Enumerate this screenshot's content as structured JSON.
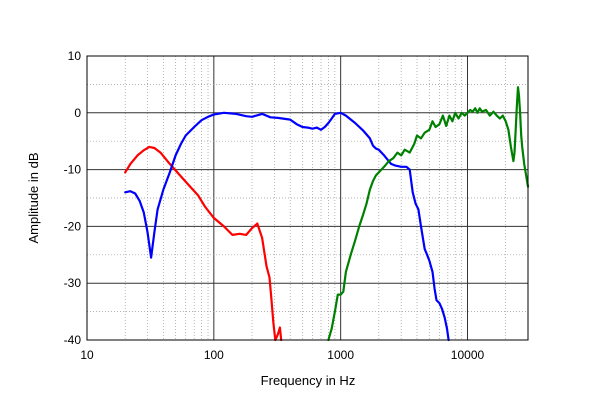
{
  "chart_data": {
    "type": "line",
    "title": "",
    "xlabel": "Frequency in Hz",
    "ylabel": "Amplitude in dB",
    "x_scale": "log",
    "xlim": [
      10,
      30000
    ],
    "ylim": [
      -40,
      10
    ],
    "grid": true,
    "x_ticks": [
      10,
      100,
      1000,
      10000
    ],
    "x_tick_labels": [
      "10",
      "100",
      "1000",
      "10000"
    ],
    "y_ticks": [
      10,
      0,
      -10,
      -20,
      -30,
      -40
    ],
    "y_tick_labels": [
      "10",
      "0",
      "-10",
      "-20",
      "-30",
      "-40"
    ],
    "series": [
      {
        "color": "#ff0000",
        "points": [
          [
            20,
            -10.5
          ],
          [
            22,
            -9
          ],
          [
            25,
            -7.5
          ],
          [
            28,
            -6.6
          ],
          [
            31,
            -6
          ],
          [
            34,
            -6.2
          ],
          [
            38,
            -7
          ],
          [
            45,
            -9
          ],
          [
            55,
            -11.2
          ],
          [
            65,
            -13
          ],
          [
            75,
            -14.5
          ],
          [
            85,
            -16.5
          ],
          [
            100,
            -18.5
          ],
          [
            120,
            -20
          ],
          [
            140,
            -21.5
          ],
          [
            160,
            -21.3
          ],
          [
            180,
            -21.5
          ],
          [
            200,
            -20.3
          ],
          [
            220,
            -19.5
          ],
          [
            240,
            -22
          ],
          [
            260,
            -27
          ],
          [
            275,
            -29
          ],
          [
            285,
            -33
          ],
          [
            295,
            -37
          ],
          [
            305,
            -40
          ],
          [
            320,
            -39
          ],
          [
            332,
            -37.8
          ],
          [
            340,
            -40
          ]
        ]
      },
      {
        "color": "#0000ff",
        "points": [
          [
            20,
            -14
          ],
          [
            22,
            -13.8
          ],
          [
            24,
            -14.2
          ],
          [
            26,
            -15.5
          ],
          [
            28,
            -17.5
          ],
          [
            30,
            -21
          ],
          [
            32,
            -25.5
          ],
          [
            34,
            -21
          ],
          [
            36,
            -17
          ],
          [
            40,
            -13.5
          ],
          [
            45,
            -10.5
          ],
          [
            50,
            -7.5
          ],
          [
            55,
            -5.5
          ],
          [
            60,
            -4
          ],
          [
            70,
            -2.5
          ],
          [
            80,
            -1.3
          ],
          [
            90,
            -0.7
          ],
          [
            100,
            -0.3
          ],
          [
            120,
            0
          ],
          [
            150,
            -0.2
          ],
          [
            180,
            -0.6
          ],
          [
            200,
            -0.7
          ],
          [
            240,
            -0.2
          ],
          [
            280,
            -0.8
          ],
          [
            320,
            -0.9
          ],
          [
            400,
            -1.2
          ],
          [
            450,
            -2
          ],
          [
            500,
            -2.5
          ],
          [
            550,
            -2.6
          ],
          [
            600,
            -2.8
          ],
          [
            650,
            -2.6
          ],
          [
            700,
            -3
          ],
          [
            750,
            -2.5
          ],
          [
            800,
            -1.8
          ],
          [
            850,
            -1
          ],
          [
            900,
            -0.2
          ],
          [
            1000,
            0
          ],
          [
            1100,
            -0.5
          ],
          [
            1300,
            -1.8
          ],
          [
            1500,
            -3.1
          ],
          [
            1700,
            -4.5
          ],
          [
            1800,
            -5.8
          ],
          [
            1900,
            -6.3
          ],
          [
            2000,
            -6.5
          ],
          [
            2200,
            -7.5
          ],
          [
            2500,
            -9
          ],
          [
            2700,
            -9.3
          ],
          [
            3000,
            -9.5
          ],
          [
            3300,
            -9.5
          ],
          [
            3500,
            -10
          ],
          [
            3700,
            -14
          ],
          [
            3900,
            -16
          ],
          [
            4100,
            -17
          ],
          [
            4300,
            -20
          ],
          [
            4600,
            -24
          ],
          [
            4800,
            -25
          ],
          [
            5000,
            -26
          ],
          [
            5300,
            -28
          ],
          [
            5500,
            -31
          ],
          [
            5700,
            -33
          ],
          [
            6000,
            -33.5
          ],
          [
            6300,
            -34.5
          ],
          [
            6600,
            -36
          ],
          [
            6900,
            -38
          ],
          [
            7100,
            -40
          ]
        ]
      },
      {
        "color": "#008000",
        "points": [
          [
            800,
            -40
          ],
          [
            850,
            -38
          ],
          [
            900,
            -35
          ],
          [
            950,
            -32
          ],
          [
            1000,
            -32
          ],
          [
            1050,
            -31.5
          ],
          [
            1100,
            -28
          ],
          [
            1200,
            -25
          ],
          [
            1300,
            -22.5
          ],
          [
            1400,
            -20
          ],
          [
            1500,
            -18
          ],
          [
            1600,
            -16
          ],
          [
            1700,
            -13.5
          ],
          [
            1800,
            -12
          ],
          [
            1900,
            -11
          ],
          [
            2000,
            -10.5
          ],
          [
            2200,
            -9.5
          ],
          [
            2400,
            -8.5
          ],
          [
            2600,
            -8
          ],
          [
            2800,
            -7
          ],
          [
            3000,
            -7.5
          ],
          [
            3200,
            -6.5
          ],
          [
            3500,
            -7
          ],
          [
            3800,
            -5.5
          ],
          [
            4000,
            -4
          ],
          [
            4300,
            -4.5
          ],
          [
            4600,
            -3.5
          ],
          [
            5000,
            -3
          ],
          [
            5300,
            -1.5
          ],
          [
            5600,
            -2.5
          ],
          [
            6000,
            -2
          ],
          [
            6400,
            -0.5
          ],
          [
            6800,
            -2.3
          ],
          [
            7200,
            -0.5
          ],
          [
            7600,
            -1.5
          ],
          [
            8000,
            0
          ],
          [
            8500,
            -1
          ],
          [
            9000,
            0
          ],
          [
            9500,
            -0.5
          ],
          [
            10000,
            0
          ],
          [
            10500,
            0.5
          ],
          [
            11000,
            0.2
          ],
          [
            11500,
            0.8
          ],
          [
            12000,
            0
          ],
          [
            12500,
            0.8
          ],
          [
            13000,
            0.2
          ],
          [
            14000,
            0.5
          ],
          [
            15000,
            -0.5
          ],
          [
            16000,
            0.2
          ],
          [
            17000,
            -0.5
          ],
          [
            18000,
            -1
          ],
          [
            19000,
            -0.5
          ],
          [
            20000,
            -1.5
          ],
          [
            21000,
            -3
          ],
          [
            22000,
            -6
          ],
          [
            23000,
            -8.5
          ],
          [
            23500,
            -7
          ],
          [
            24000,
            -3
          ],
          [
            24500,
            1
          ],
          [
            25000,
            4.5
          ],
          [
            25500,
            3
          ],
          [
            26000,
            0
          ],
          [
            26500,
            -4
          ],
          [
            27000,
            -6
          ],
          [
            28000,
            -9
          ],
          [
            29000,
            -11
          ],
          [
            30000,
            -13
          ]
        ]
      }
    ]
  }
}
